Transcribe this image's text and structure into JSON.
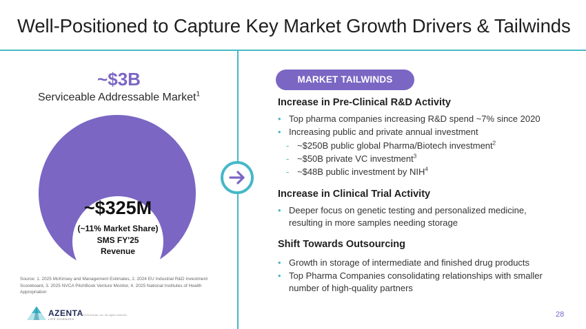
{
  "title": "Well-Positioned to Capture Key Market Growth Drivers & Tailwinds",
  "left": {
    "sam_value": "~$3B",
    "sam_label": "Serviceable Addressable Market",
    "sam_label_sup": "1",
    "revenue_value": "~$325M",
    "revenue_share": "(~11% Market Share)",
    "revenue_line2": "SMS FY'25",
    "revenue_line3": "Revenue",
    "source": "Source: 1. 2025 McKinsey and Management Estimates, 2. 2024 EU Industrial R&D Investment Scoreboard, 3. 2025 NVCA PitchBook Venture Monitor, 4. 2025 National Institutes of Health Appropriation"
  },
  "footer": {
    "logo_word": "AZENTA",
    "logo_sub": "LIFE SCIENCES",
    "copyright": "© 2025 Azenta, Inc. All rights reserved",
    "page_number": "28"
  },
  "right": {
    "pill_label": "MARKET TAILWINDS",
    "sections": [
      {
        "heading": "Increase in Pre-Clinical R&D Activity",
        "bullets": [
          "Top pharma companies increasing R&D spend ~7% since 2020",
          "Increasing public and private annual investment"
        ],
        "subs": [
          {
            "text": "~$250B public global Pharma/Biotech investment",
            "sup": "2"
          },
          {
            "text": "~$50B private VC investment",
            "sup": "3"
          },
          {
            "text": "~$48B public investment by NIH",
            "sup": "4"
          }
        ]
      },
      {
        "heading": "Increase in Clinical Trial Activity",
        "bullets": [
          "Deeper focus on genetic testing and personalized medicine,",
          "resulting in more samples needing storage"
        ]
      },
      {
        "heading": "Shift Towards Outsourcing",
        "bullets": [
          "Growth in storage of intermediate and finished drug products",
          "Top Pharma Companies consolidating relationships with smaller",
          "number of high-quality partners"
        ]
      }
    ]
  },
  "colors": {
    "accent_purple": "#7b66c4",
    "accent_teal": "#45b8c8",
    "logo_navy": "#1f2a55"
  },
  "icons": {
    "arrow": "arrow-right-icon",
    "bullet": "bullet-dot-icon",
    "logo": "azenta-logo-icon"
  }
}
